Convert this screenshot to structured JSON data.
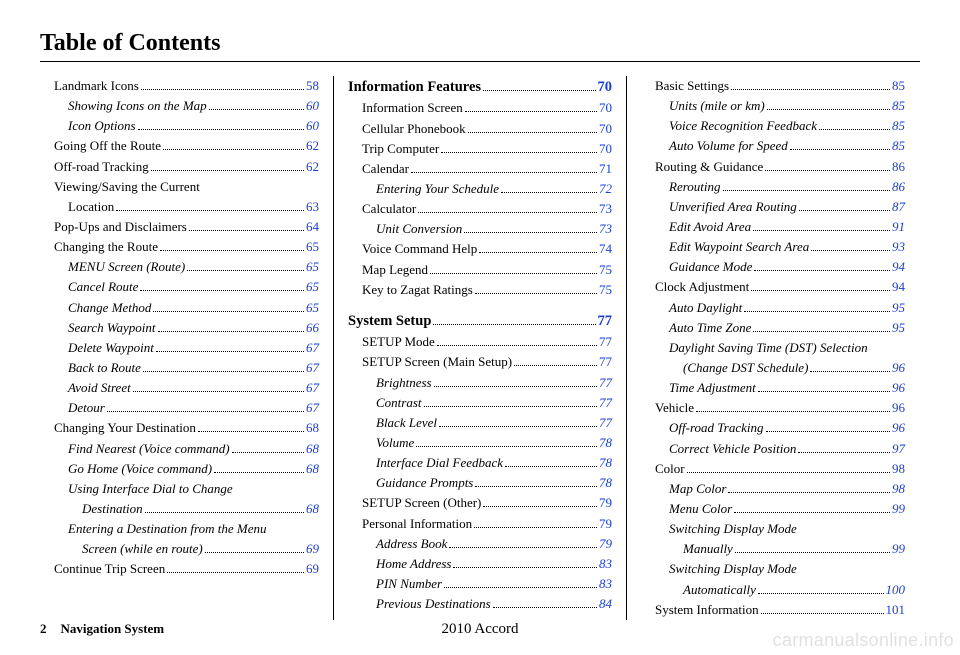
{
  "title": "Table of Contents",
  "footer": {
    "page_number": "2",
    "system_label": "Navigation System",
    "model_year": "2010 Accord"
  },
  "watermark": "carmanualsonline.info",
  "page_color": {
    "link": "#1a3fd6",
    "text": "#000000",
    "background": "#ffffff"
  },
  "columns": [
    [
      {
        "label": "Landmark Icons",
        "page": "58",
        "level": 0
      },
      {
        "label": "Showing Icons on the Map",
        "page": "60",
        "level": 1,
        "italic": true
      },
      {
        "label": "Icon Options",
        "page": "60",
        "level": 1,
        "italic": true
      },
      {
        "label": "Going Off the Route",
        "page": "62",
        "level": 0
      },
      {
        "label": "Off-road Tracking",
        "page": "62",
        "level": 0
      },
      {
        "label": "Viewing/Saving the Current",
        "level": 0,
        "cont": true
      },
      {
        "label": "Location",
        "page": "63",
        "level": 1
      },
      {
        "label": "Pop-Ups and Disclaimers",
        "page": "64",
        "level": 0
      },
      {
        "label": "Changing the Route",
        "page": "65",
        "level": 0
      },
      {
        "label": "MENU Screen (Route)",
        "page": "65",
        "level": 1,
        "italic": true
      },
      {
        "label": "Cancel Route",
        "page": "65",
        "level": 1,
        "italic": true
      },
      {
        "label": "Change Method",
        "page": "65",
        "level": 1,
        "italic": true
      },
      {
        "label": "Search Waypoint",
        "page": "66",
        "level": 1,
        "italic": true
      },
      {
        "label": "Delete Waypoint",
        "page": "67",
        "level": 1,
        "italic": true
      },
      {
        "label": "Back to Route",
        "page": "67",
        "level": 1,
        "italic": true
      },
      {
        "label": "Avoid Street",
        "page": "67",
        "level": 1,
        "italic": true
      },
      {
        "label": "Detour",
        "page": "67",
        "level": 1,
        "italic": true
      },
      {
        "label": "Changing Your Destination",
        "page": "68",
        "level": 0
      },
      {
        "label": "Find Nearest (Voice command)",
        "page": "68",
        "level": 1,
        "italic": true
      },
      {
        "label": "Go Home (Voice command)",
        "page": "68",
        "level": 1,
        "italic": true
      },
      {
        "label": "Using Interface Dial to Change",
        "level": 1,
        "italic": true,
        "cont": true
      },
      {
        "label": "Destination",
        "page": "68",
        "level": 2,
        "italic": true
      },
      {
        "label": "Entering a Destination from the Menu",
        "level": 1,
        "italic": true,
        "cont": true
      },
      {
        "label": "Screen (while en route)",
        "page": "69",
        "level": 2,
        "italic": true
      },
      {
        "label": "Continue Trip Screen",
        "page": "69",
        "level": 0
      }
    ],
    [
      {
        "label": "Information Features",
        "page": "70",
        "level": 0,
        "bold": true
      },
      {
        "label": "Information Screen",
        "page": "70",
        "level": 1
      },
      {
        "label": "Cellular Phonebook",
        "page": "70",
        "level": 1
      },
      {
        "label": "Trip Computer",
        "page": "70",
        "level": 1
      },
      {
        "label": "Calendar",
        "page": "71",
        "level": 1
      },
      {
        "label": "Entering Your Schedule",
        "page": "72",
        "level": 2,
        "italic": true
      },
      {
        "label": "Calculator",
        "page": "73",
        "level": 1
      },
      {
        "label": "Unit Conversion",
        "page": "73",
        "level": 2,
        "italic": true
      },
      {
        "label": "Voice Command Help",
        "page": "74",
        "level": 1
      },
      {
        "label": "Map Legend",
        "page": "75",
        "level": 1
      },
      {
        "label": "Key to Zagat Ratings",
        "page": "75",
        "level": 1
      },
      {
        "label": "System Setup",
        "page": "77",
        "level": 0,
        "bold": true,
        "gap": true
      },
      {
        "label": "SETUP Mode",
        "page": "77",
        "level": 1
      },
      {
        "label": "SETUP Screen (Main Setup)",
        "page": "77",
        "level": 1
      },
      {
        "label": "Brightness",
        "page": "77",
        "level": 2,
        "italic": true
      },
      {
        "label": "Contrast",
        "page": "77",
        "level": 2,
        "italic": true
      },
      {
        "label": "Black Level",
        "page": "77",
        "level": 2,
        "italic": true
      },
      {
        "label": "Volume",
        "page": "78",
        "level": 2,
        "italic": true
      },
      {
        "label": "Interface Dial Feedback",
        "page": "78",
        "level": 2,
        "italic": true
      },
      {
        "label": "Guidance Prompts",
        "page": "78",
        "level": 2,
        "italic": true
      },
      {
        "label": "SETUP Screen (Other)",
        "page": "79",
        "level": 1
      },
      {
        "label": "Personal Information",
        "page": "79",
        "level": 1
      },
      {
        "label": "Address Book",
        "page": "79",
        "level": 2,
        "italic": true
      },
      {
        "label": "Home Address",
        "page": "83",
        "level": 2,
        "italic": true
      },
      {
        "label": "PIN Number",
        "page": "83",
        "level": 2,
        "italic": true
      },
      {
        "label": "Previous Destinations",
        "page": "84",
        "level": 2,
        "italic": true
      }
    ],
    [
      {
        "label": "Basic Settings",
        "page": "85",
        "level": 1
      },
      {
        "label": "Units (mile or km)",
        "page": "85",
        "level": 2,
        "italic": true
      },
      {
        "label": "Voice Recognition Feedback",
        "page": "85",
        "level": 2,
        "italic": true
      },
      {
        "label": "Auto Volume for Speed",
        "page": "85",
        "level": 2,
        "italic": true
      },
      {
        "label": "Routing & Guidance",
        "page": "86",
        "level": 1
      },
      {
        "label": "Rerouting",
        "page": "86",
        "level": 2,
        "italic": true
      },
      {
        "label": "Unverified Area Routing",
        "page": "87",
        "level": 2,
        "italic": true
      },
      {
        "label": "Edit Avoid Area",
        "page": "91",
        "level": 2,
        "italic": true
      },
      {
        "label": "Edit Waypoint Search Area",
        "page": "93",
        "level": 2,
        "italic": true
      },
      {
        "label": "Guidance Mode",
        "page": "94",
        "level": 2,
        "italic": true
      },
      {
        "label": "Clock Adjustment",
        "page": "94",
        "level": 1
      },
      {
        "label": "Auto Daylight",
        "page": "95",
        "level": 2,
        "italic": true
      },
      {
        "label": "Auto Time Zone",
        "page": "95",
        "level": 2,
        "italic": true
      },
      {
        "label": "Daylight Saving Time (DST) Selection",
        "level": 2,
        "italic": true,
        "cont": true
      },
      {
        "label": "(Change DST Schedule)",
        "page": "96",
        "level": 3,
        "italic": true
      },
      {
        "label": "Time Adjustment",
        "page": "96",
        "level": 2,
        "italic": true
      },
      {
        "label": "Vehicle",
        "page": "96",
        "level": 1
      },
      {
        "label": "Off-road Tracking",
        "page": "96",
        "level": 2,
        "italic": true
      },
      {
        "label": "Correct Vehicle Position",
        "page": "97",
        "level": 2,
        "italic": true
      },
      {
        "label": "Color",
        "page": "98",
        "level": 1
      },
      {
        "label": "Map Color",
        "page": "98",
        "level": 2,
        "italic": true
      },
      {
        "label": "Menu Color",
        "page": "99",
        "level": 2,
        "italic": true
      },
      {
        "label": "Switching Display Mode",
        "level": 2,
        "italic": true,
        "cont": true
      },
      {
        "label": "Manually",
        "page": "99",
        "level": 3,
        "italic": true
      },
      {
        "label": "Switching Display Mode",
        "level": 2,
        "italic": true,
        "cont": true
      },
      {
        "label": "Automatically",
        "page": "100",
        "level": 3,
        "italic": true
      },
      {
        "label": "System Information",
        "page": "101",
        "level": 1
      }
    ]
  ]
}
